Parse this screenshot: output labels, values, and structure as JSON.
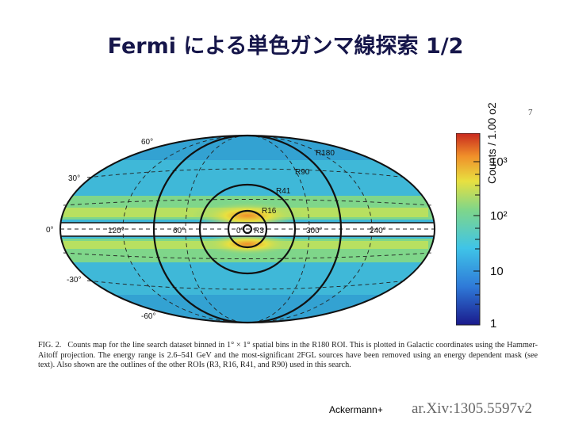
{
  "slide": {
    "title": "Fermi による単色ガンマ線探索 1/2",
    "page_number": "7"
  },
  "figure": {
    "latitude_labels": [
      "60°",
      "30°",
      "0°",
      "-30°",
      "-60°"
    ],
    "longitude_labels": [
      "120°",
      "60°",
      "0°",
      "300°",
      "240°"
    ],
    "roi_labels": [
      "R180",
      "R90",
      "R41",
      "R16",
      "R3"
    ],
    "colorbar": {
      "title": "Counts / 1.00 o2",
      "ticks": [
        "10³",
        "10²",
        "10",
        "1"
      ],
      "colors": [
        "#1a1a8c",
        "#2f7ad8",
        "#3fc4e8",
        "#7fd68a",
        "#e8e040",
        "#f0902a",
        "#c8281e"
      ]
    }
  },
  "caption": {
    "label": "FIG. 2.",
    "text": "Counts map for the line search dataset binned in 1° × 1° spatial bins in the R180 ROI. This is plotted in Galactic coordinates using the Hammer-Aitoff projection. The energy range is 2.6–541 GeV and the most-significant 2FGL sources have been removed using an energy dependent mask (see text). Also shown are the outlines of the other ROIs (R3, R16, R41, and R90) used in this search."
  },
  "footer": {
    "credit": "Ackermann+",
    "arxiv": "ar.Xiv:1305.5597v2"
  }
}
